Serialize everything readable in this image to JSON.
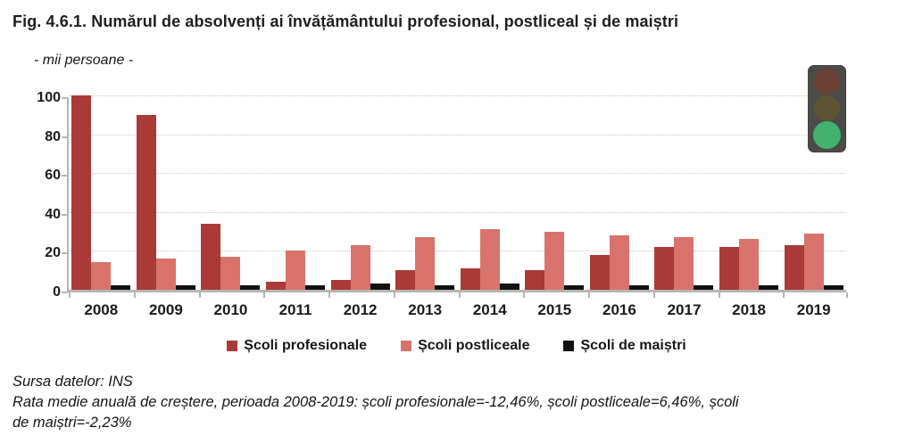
{
  "title": "Fig. 4.6.1. Numărul de absolvenți ai învățământului profesional, postliceal și de maiștri",
  "subtitle": "- mii persoane -",
  "source_line": "Sursa datelor: INS",
  "note_lines": [
    "Rata medie anuală de creștere, perioada 2008-2019: școli profesionale=-12,46%, școli postliceale=6,46%, școli",
    "de maiștri=-2,23%"
  ],
  "traffic_light": {
    "state": "green-active",
    "body_color": "#4b4b48",
    "lamps": [
      {
        "name": "red-lamp-dim",
        "color": "#6c4033"
      },
      {
        "name": "yellow-lamp-dim",
        "color": "#5e5433"
      },
      {
        "name": "green-lamp-active",
        "color": "#43b26c"
      }
    ]
  },
  "chart_data": {
    "type": "bar",
    "title": "Numărul de absolvenți ai învățământului profesional, postliceal și de maiștri",
    "unit_label": "mii persoane",
    "categories": [
      "2008",
      "2009",
      "2010",
      "2011",
      "2012",
      "2013",
      "2014",
      "2015",
      "2016",
      "2017",
      "2018",
      "2019"
    ],
    "series": [
      {
        "name": "Școli profesionale",
        "color": "#a93a38",
        "values": [
          100,
          90,
          34,
          4,
          5,
          10,
          11,
          10,
          18,
          22,
          22,
          23
        ]
      },
      {
        "name": "Școli postliceale",
        "color": "#d8736b",
        "values": [
          14,
          16,
          17,
          20,
          23,
          27,
          31,
          30,
          28,
          27,
          26,
          29
        ]
      },
      {
        "name": "Școli de maiștri",
        "color": "#111111",
        "values": [
          2.5,
          2.5,
          2.5,
          2.5,
          3,
          2.5,
          3,
          2.5,
          2.5,
          2.5,
          2.5,
          2.5
        ]
      }
    ],
    "xlabel": "",
    "ylabel": "",
    "ylim": [
      0,
      100
    ],
    "yticks": [
      0,
      20,
      40,
      60,
      80,
      100
    ],
    "grid": true,
    "legend_position": "bottom"
  }
}
